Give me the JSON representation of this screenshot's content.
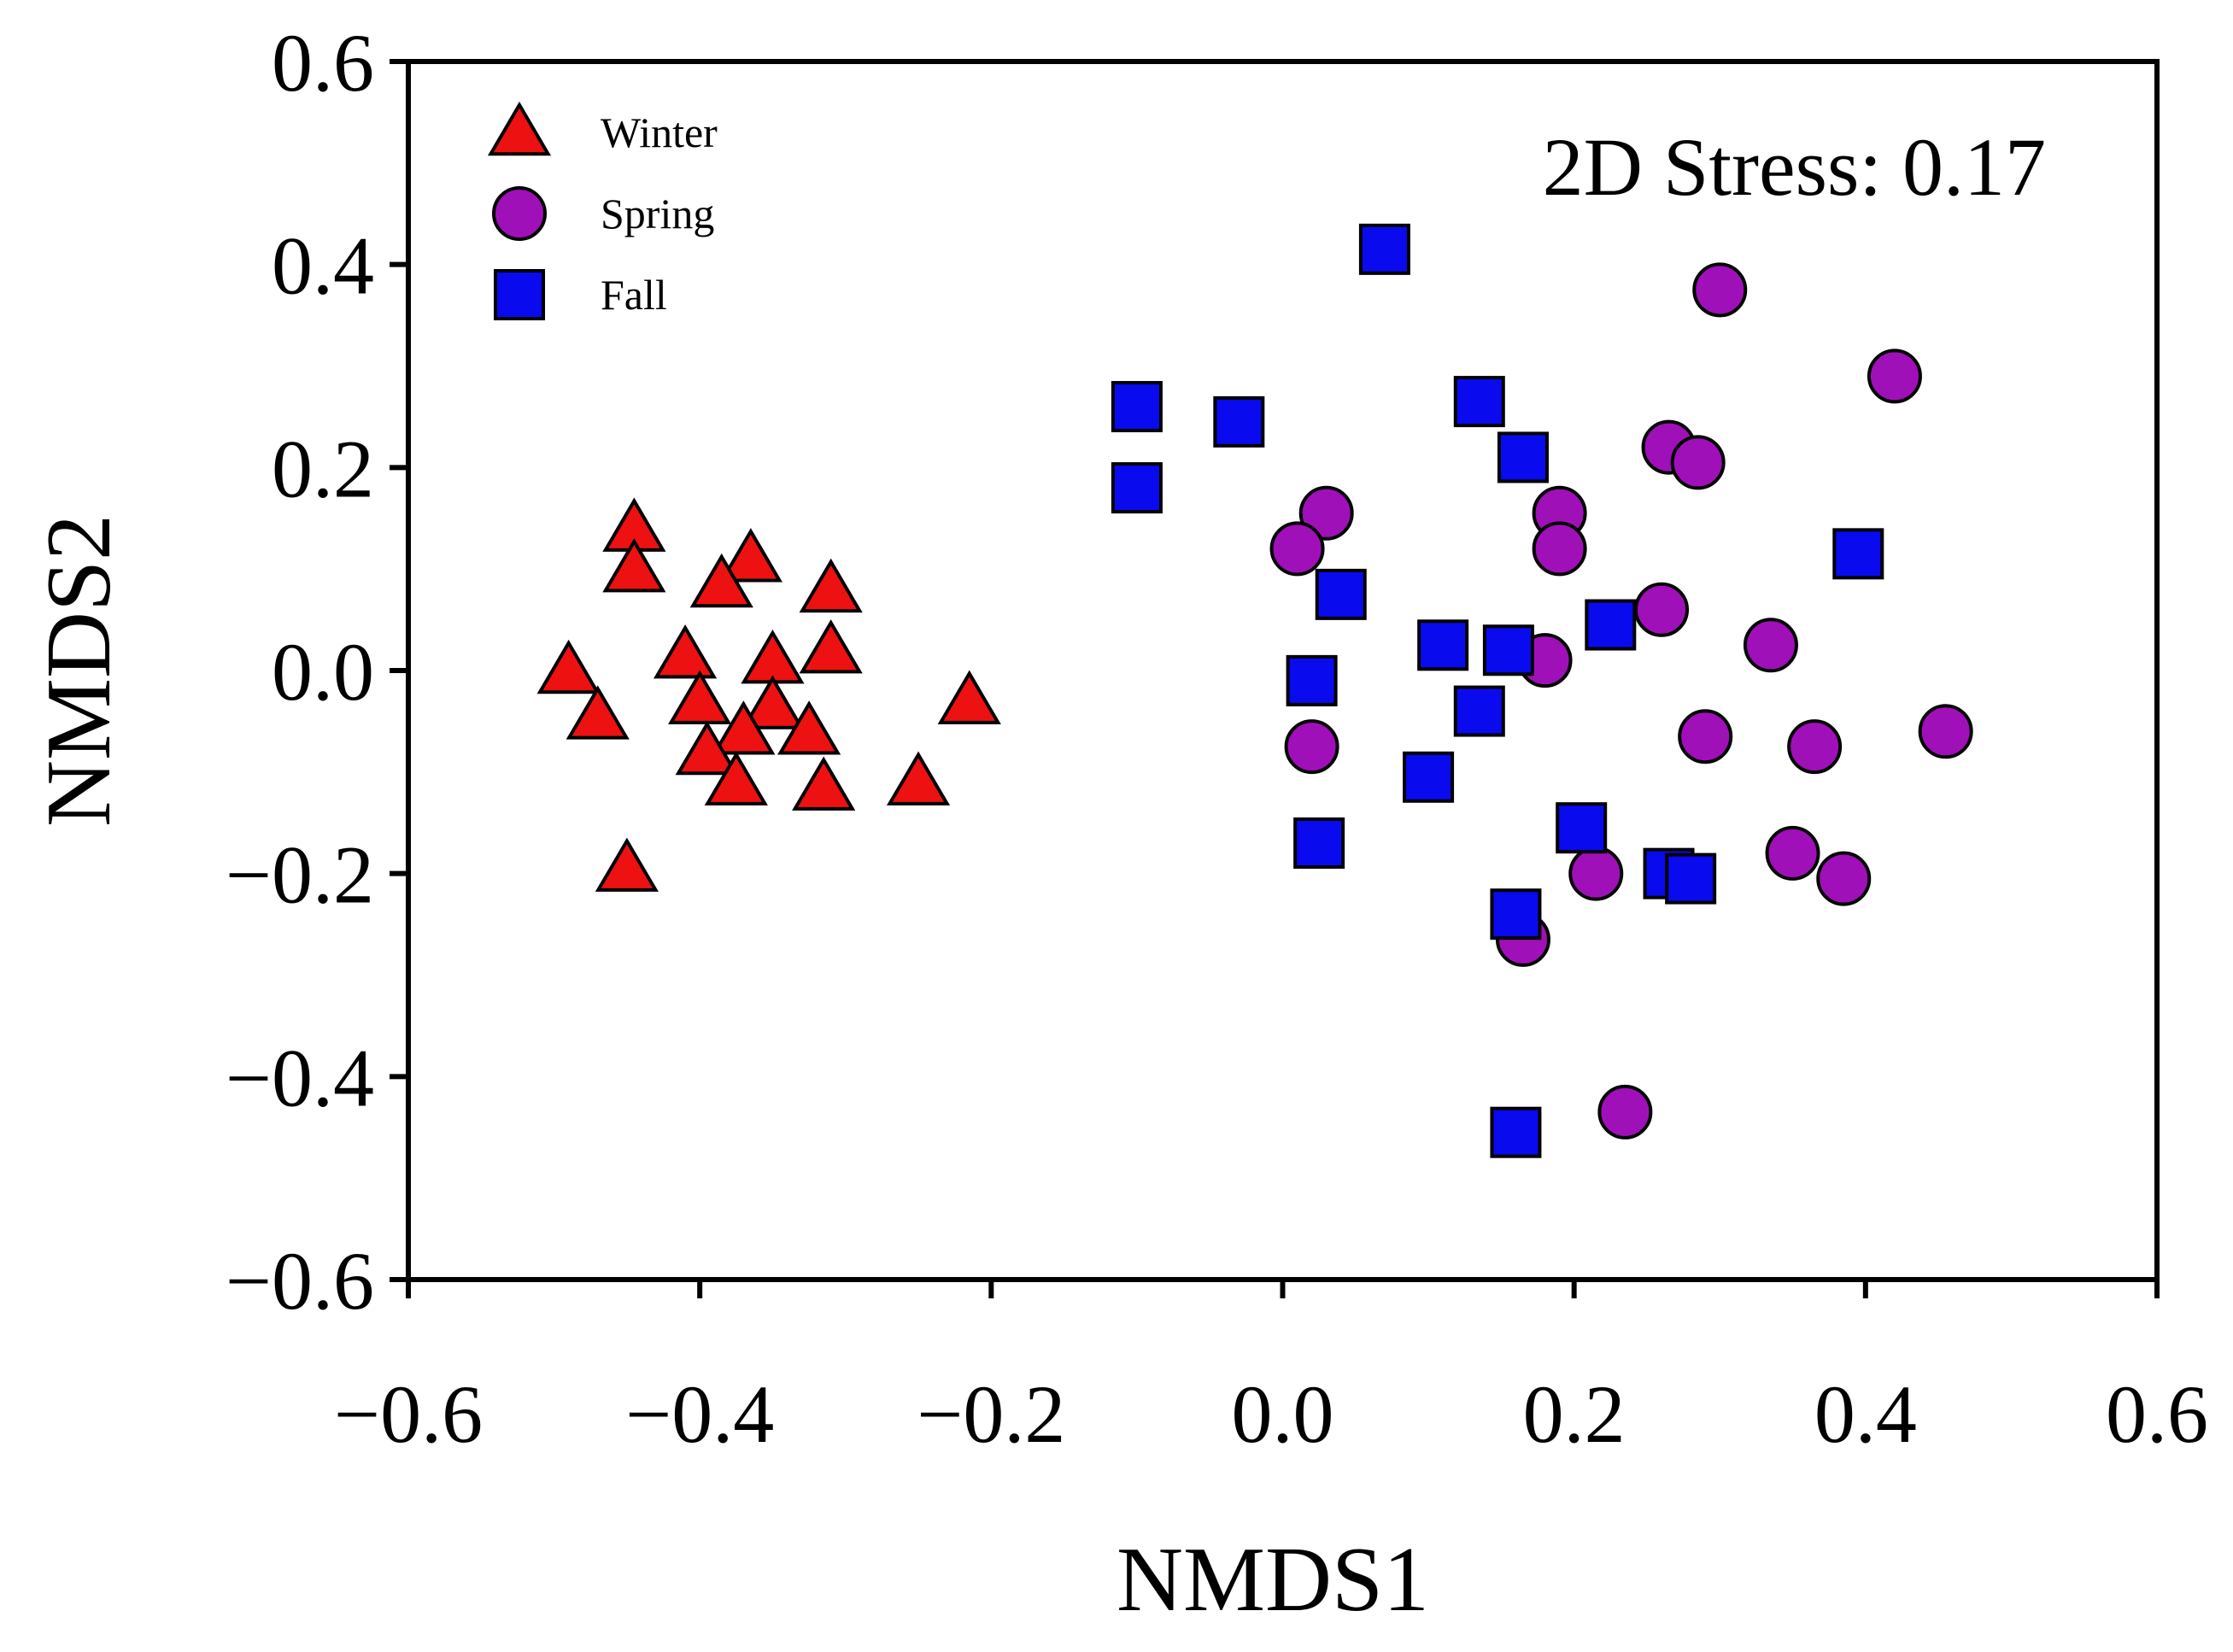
{
  "chart_data": {
    "type": "scatter",
    "title": "",
    "xlabel": "NMDS1",
    "ylabel": "NMDS2",
    "xlim": [
      -0.6,
      0.6
    ],
    "ylim": [
      -0.6,
      0.6
    ],
    "x_ticks": [
      -0.6,
      -0.4,
      -0.2,
      0.0,
      0.2,
      0.4,
      0.6
    ],
    "y_ticks": [
      -0.6,
      -0.4,
      -0.2,
      0.0,
      0.2,
      0.4,
      0.6
    ],
    "x_tick_labels": [
      "−0.6",
      "−0.4",
      "−0.2",
      "0.0",
      "0.2",
      "0.4",
      "0.6"
    ],
    "y_tick_labels": [
      "−0.6",
      "−0.4",
      "−0.2",
      "0.0",
      "0.2",
      "0.4",
      "0.6"
    ],
    "grid": false,
    "legend_position": "top-left",
    "annotation": "2D Stress: 0.17",
    "series": [
      {
        "name": "Winter",
        "marker": "triangle",
        "color": "#ee1111",
        "points": [
          [
            -0.445,
            0.14
          ],
          [
            -0.445,
            0.1
          ],
          [
            -0.365,
            0.11
          ],
          [
            -0.385,
            0.085
          ],
          [
            -0.31,
            0.08
          ],
          [
            -0.49,
            0.0
          ],
          [
            -0.41,
            0.015
          ],
          [
            -0.35,
            0.01
          ],
          [
            -0.31,
            0.02
          ],
          [
            -0.47,
            -0.045
          ],
          [
            -0.4,
            -0.03
          ],
          [
            -0.35,
            -0.035
          ],
          [
            -0.37,
            -0.06
          ],
          [
            -0.325,
            -0.06
          ],
          [
            -0.215,
            -0.03
          ],
          [
            -0.395,
            -0.08
          ],
          [
            -0.375,
            -0.11
          ],
          [
            -0.315,
            -0.115
          ],
          [
            -0.25,
            -0.11
          ],
          [
            -0.45,
            -0.195
          ]
        ]
      },
      {
        "name": "Spring",
        "marker": "circle",
        "color": "#a010b8",
        "points": [
          [
            0.3,
            0.375
          ],
          [
            0.42,
            0.29
          ],
          [
            0.265,
            0.22
          ],
          [
            0.285,
            0.205
          ],
          [
            0.03,
            0.155
          ],
          [
            0.19,
            0.155
          ],
          [
            0.01,
            0.12
          ],
          [
            0.19,
            0.12
          ],
          [
            0.26,
            0.06
          ],
          [
            0.335,
            0.025
          ],
          [
            0.18,
            0.01
          ],
          [
            0.02,
            -0.075
          ],
          [
            0.29,
            -0.065
          ],
          [
            0.365,
            -0.075
          ],
          [
            0.455,
            -0.06
          ],
          [
            0.35,
            -0.18
          ],
          [
            0.385,
            -0.205
          ],
          [
            0.215,
            -0.2
          ],
          [
            0.165,
            -0.265
          ],
          [
            0.235,
            -0.435
          ]
        ]
      },
      {
        "name": "Fall",
        "marker": "square",
        "color": "#0a0aee",
        "points": [
          [
            0.07,
            0.415
          ],
          [
            -0.1,
            0.26
          ],
          [
            -0.03,
            0.245
          ],
          [
            0.135,
            0.265
          ],
          [
            0.165,
            0.21
          ],
          [
            -0.1,
            0.18
          ],
          [
            0.04,
            0.075
          ],
          [
            0.395,
            0.115
          ],
          [
            0.225,
            0.045
          ],
          [
            0.11,
            0.025
          ],
          [
            0.155,
            0.02
          ],
          [
            0.02,
            -0.01
          ],
          [
            0.135,
            -0.04
          ],
          [
            0.1,
            -0.105
          ],
          [
            0.025,
            -0.17
          ],
          [
            0.205,
            -0.155
          ],
          [
            0.265,
            -0.2
          ],
          [
            0.28,
            -0.205
          ],
          [
            0.16,
            -0.24
          ],
          [
            0.16,
            -0.455
          ]
        ]
      }
    ]
  }
}
